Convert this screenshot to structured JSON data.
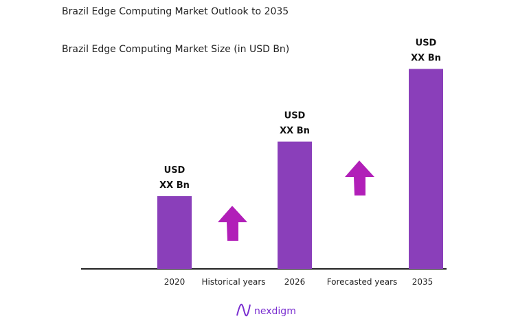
{
  "chart_data": {
    "type": "bar",
    "title": "Brazil Edge Computing Market Outlook to 2035",
    "subtitle": "Brazil Edge Computing Market Size (in USD Bn)",
    "categories": [
      "2020",
      "2026",
      "2035"
    ],
    "values": [
      1.0,
      1.75,
      2.75
    ],
    "data_labels": [
      [
        "USD",
        "XX Bn"
      ],
      [
        "USD",
        "XX Bn"
      ],
      [
        "USD",
        "XX Bn"
      ]
    ],
    "period_labels": [
      "Historical years",
      "Forecasted years"
    ],
    "grid": false,
    "colors": {
      "bar": "#8A3FBA",
      "arrow": "#B11FB8",
      "axis": "#222222"
    }
  },
  "brand": {
    "name": "nexdigm",
    "color": "#7A2FD0"
  }
}
